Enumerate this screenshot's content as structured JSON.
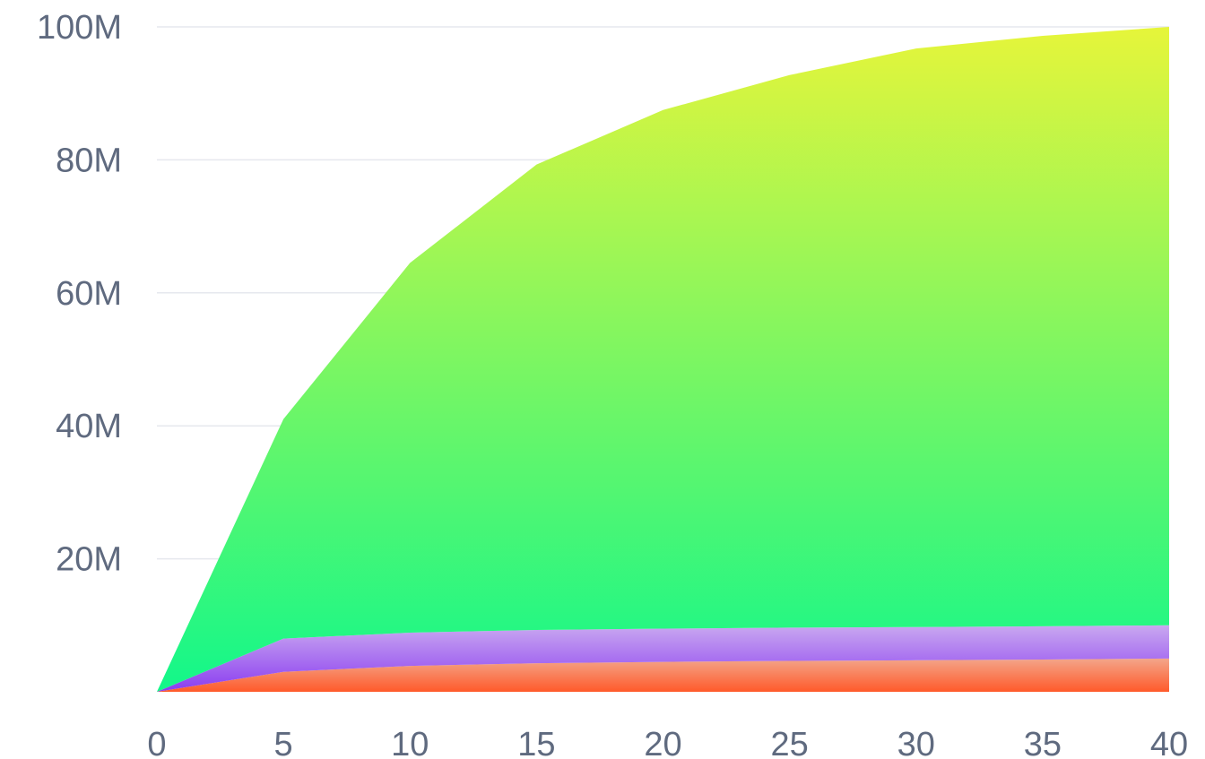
{
  "chart_data": {
    "type": "area",
    "stacked": true,
    "title": "",
    "xlabel": "",
    "ylabel": "",
    "x": [
      0,
      5,
      10,
      15,
      20,
      25,
      30,
      35,
      40
    ],
    "xlim": [
      0,
      40
    ],
    "ylim": [
      0,
      100000000
    ],
    "grid": true,
    "legend": "none",
    "x_ticks": [
      "0",
      "5",
      "10",
      "15",
      "20",
      "25",
      "30",
      "35",
      "40"
    ],
    "y_ticks": [
      {
        "value": 20000000,
        "label": "20M"
      },
      {
        "value": 40000000,
        "label": "40M"
      },
      {
        "value": 60000000,
        "label": "60M"
      },
      {
        "value": 80000000,
        "label": "80M"
      },
      {
        "value": 100000000,
        "label": "100M"
      }
    ],
    "series": [
      {
        "values": [
          0,
          3000000,
          3900000,
          4300000,
          4500000,
          4650000,
          4750000,
          4850000,
          5000000
        ],
        "colors": {
          "top": "#f3a58a",
          "bottom": "#ff5a2a"
        }
      },
      {
        "values": [
          0,
          5000000,
          5000000,
          5000000,
          5000000,
          5000000,
          5000000,
          5000000,
          5000000
        ],
        "colors": {
          "top": "#c9a8f0",
          "bottom": "#8a3cf0"
        }
      },
      {
        "values": [
          0,
          33000000,
          55600000,
          70000000,
          78000000,
          83100000,
          87000000,
          88800000,
          90000000
        ],
        "colors": {
          "top": "#e6f53a",
          "bottom": "#12f78a"
        }
      }
    ]
  }
}
